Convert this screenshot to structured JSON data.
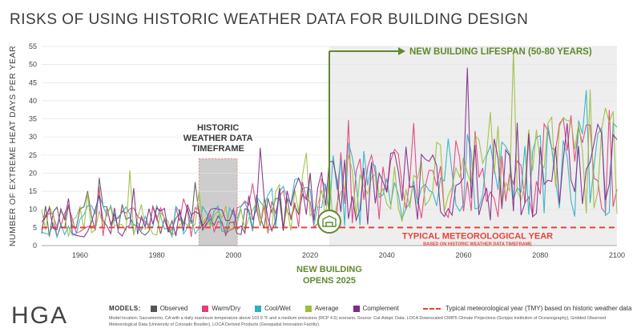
{
  "chart_data": {
    "type": "line",
    "title": "RISKS OF USING HISTORIC WEATHER DATA FOR BUILDING DESIGN",
    "ylabel": "NUMBER OF EXTREME HEAT DAYS PER YEAR",
    "xlabel": "",
    "xlim": [
      1950,
      2100
    ],
    "ylim": [
      0,
      55
    ],
    "x_ticks": [
      1960,
      1980,
      2000,
      2020,
      2040,
      2060,
      2080,
      2100
    ],
    "y_ticks": [
      0,
      5,
      10,
      15,
      20,
      25,
      30,
      35,
      40,
      45,
      50,
      55
    ],
    "series_names": [
      "Observed",
      "Warm/Dry",
      "Cool/Wet",
      "Average",
      "Complement"
    ],
    "series_colors": [
      "#555555",
      "#e13d7a",
      "#2bafc2",
      "#9bbd3c",
      "#7e2a86"
    ],
    "tmy_value": 5,
    "tmy_color": "#e8423a",
    "highlight_color": "#5f8a2d",
    "annotations": {
      "historic": [
        "HISTORIC",
        "WEATHER DATA",
        "TIMEFRAME"
      ],
      "historic_range": [
        1991,
        2001
      ],
      "lifespan": "NEW BUILDING LIFESPAN (50-80 YEARS)",
      "lifespan_start": 2025,
      "opens": [
        "NEW BUILDING",
        "OPENS 2025"
      ],
      "tmy_label": "TYPICAL METEOROLOGICAL YEAR",
      "tmy_sub": "BASED ON HISTORIC WEATHER DATA TIMEFRAME"
    }
  },
  "footer": {
    "logo": "HGA",
    "legend_label": "MODELS:",
    "legend_items": [
      "Observed",
      "Warm/Dry",
      "Cool/Wet",
      "Average",
      "Complement"
    ],
    "legend_colors": [
      "#555555",
      "#e13d7a",
      "#2bafc2",
      "#9bbd3c",
      "#7e2a86"
    ],
    "tmy_text": "Typical meteorological year (TMY) based on historic weather data",
    "source": "Model location: Sacramento, CA with a daily maximum temperature above 103.9 °F and a medium emissions (RCP 4.5) scenario. Source: Cal-Adapt. Data: LOCA Downscaled CMIP5 Climate Projections (Scripps Institution of Oceanography), Gridded Observed Meteorological Data (University of Colorado Boulder), LOCA Derived Products (Geospatial Innovation Facility)."
  }
}
